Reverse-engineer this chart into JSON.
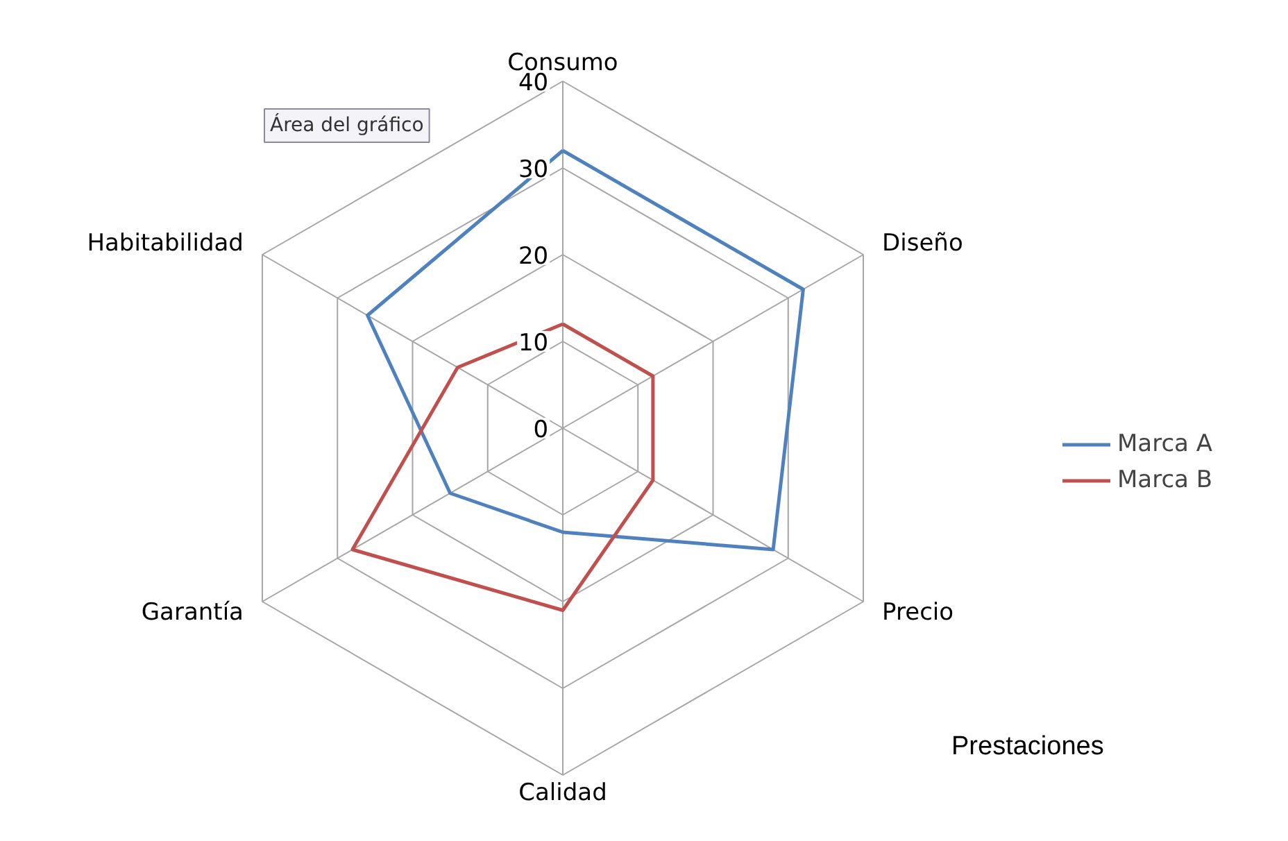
{
  "chart_data": {
    "type": "radar",
    "categories": [
      "Consumo",
      "Diseño",
      "Precio",
      "Calidad",
      "Garantía",
      "Habitabilidad"
    ],
    "series": [
      {
        "name": "Marca A",
        "color": "#4f81bd",
        "values": [
          32,
          32,
          28,
          12,
          15,
          26
        ]
      },
      {
        "name": "Marca B",
        "color": "#c0504d",
        "values": [
          12,
          12,
          12,
          21,
          28,
          14
        ]
      }
    ],
    "ylim": [
      0,
      40
    ],
    "yticks": [
      0,
      10,
      20,
      30,
      40
    ],
    "grid": true,
    "legend": "right",
    "marker": "none",
    "line_style": "solid",
    "annotations": [
      "Área del gráfico",
      "Prestaciones"
    ]
  }
}
